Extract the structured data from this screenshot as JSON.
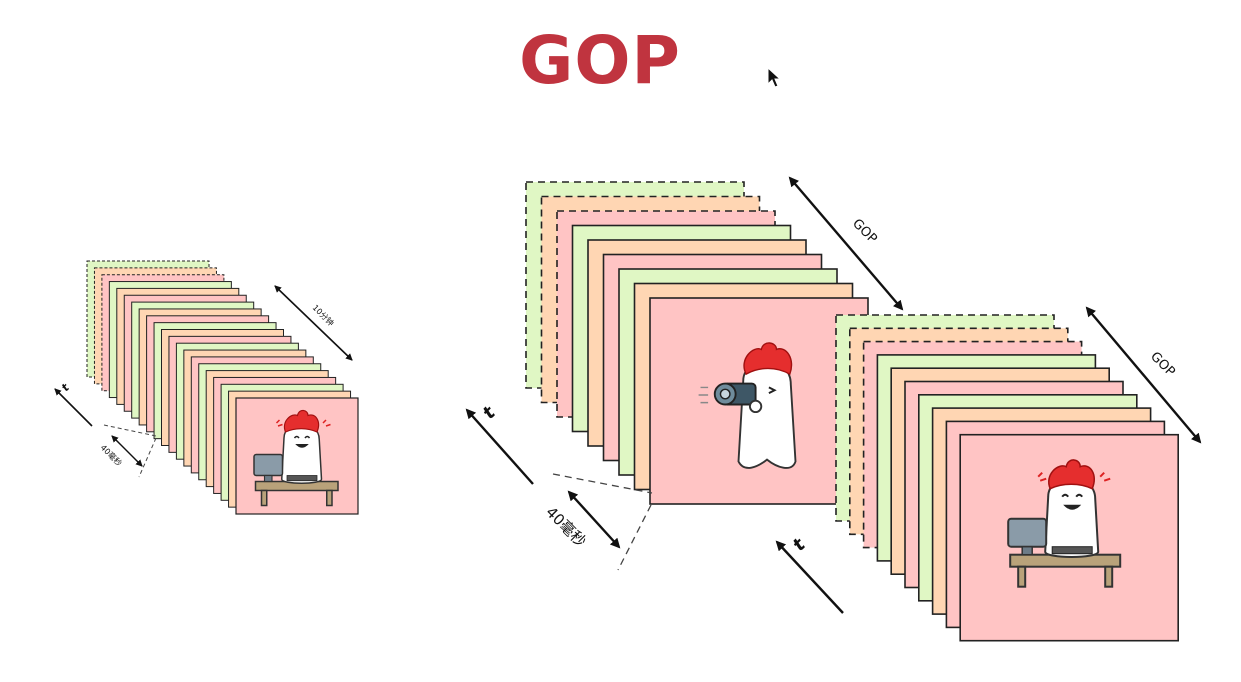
{
  "title": "GOP",
  "colors": {
    "title": "#c0343f",
    "pink": "#ffc4c4",
    "peach": "#ffd6b3",
    "green": "#e0f7c4",
    "outline": "#222222",
    "arrow": "#111111"
  },
  "labels": {
    "time_axis": "t",
    "frame_interval": "40毫秒",
    "duration": "10分钟",
    "gop": "GOP"
  },
  "icons": {
    "cursor": "mouse-pointer-icon",
    "mascot_camera": "mascot-with-camera-icon",
    "mascot_computer": "mascot-at-computer-icon"
  }
}
